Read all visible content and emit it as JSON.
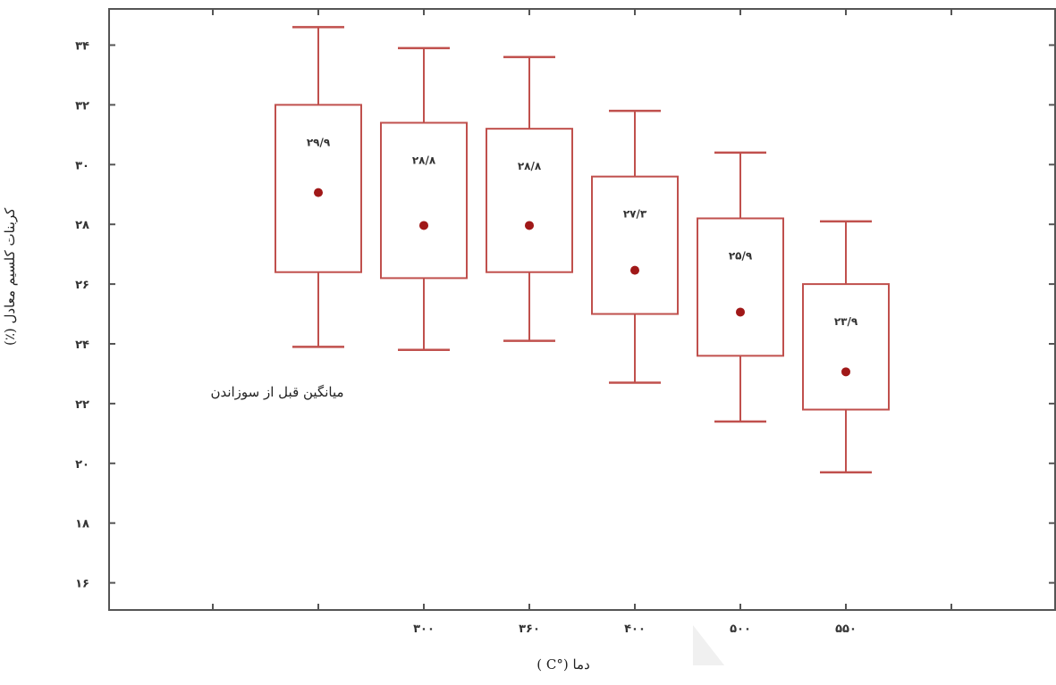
{
  "chart_data": {
    "type": "box",
    "ylabel": "کربنات کلسیم معادل (٪)",
    "xlabel": "دما (°C )",
    "annotation": "میانگین قبل از سوزاندن",
    "ylim": [
      15,
      35
    ],
    "y_ticks": [
      16,
      18,
      20,
      22,
      24,
      26,
      28,
      30,
      32,
      34
    ],
    "y_tick_labels": [
      "۱۶",
      "۱۸",
      "۲۰",
      "۲۲",
      "۲۴",
      "۲۶",
      "۲۸",
      "۳۰",
      "۳۲",
      "۳۴"
    ],
    "categories": [
      "",
      "۳۰۰",
      "۳۶۰",
      "۴۰۰",
      "۵۰۰",
      "۵۵۰"
    ],
    "boxes": [
      {
        "min": 23.9,
        "q1": 26.4,
        "mean": 29.9,
        "q3": 32.0,
        "max": 34.6,
        "label": "۲۹/۹"
      },
      {
        "min": 23.8,
        "q1": 26.2,
        "mean": 28.8,
        "q3": 31.4,
        "max": 33.9,
        "label": "۲۸/۸"
      },
      {
        "min": 24.1,
        "q1": 26.4,
        "mean": 28.8,
        "q3": 31.2,
        "max": 33.6,
        "label": "۲۸/۸"
      },
      {
        "min": 22.7,
        "q1": 25.0,
        "mean": 27.3,
        "q3": 29.6,
        "max": 31.8,
        "label": "۲۷/۳"
      },
      {
        "min": 21.4,
        "q1": 23.6,
        "mean": 25.9,
        "q3": 28.2,
        "max": 30.4,
        "label": "۲۵/۹"
      },
      {
        "min": 19.7,
        "q1": 21.8,
        "mean": 23.9,
        "q3": 26.0,
        "max": 28.1,
        "label": "۲۳/۹"
      }
    ],
    "colors": {
      "box": "#c0504d",
      "mean_dot": "#a01818",
      "axis": "#555555"
    }
  }
}
